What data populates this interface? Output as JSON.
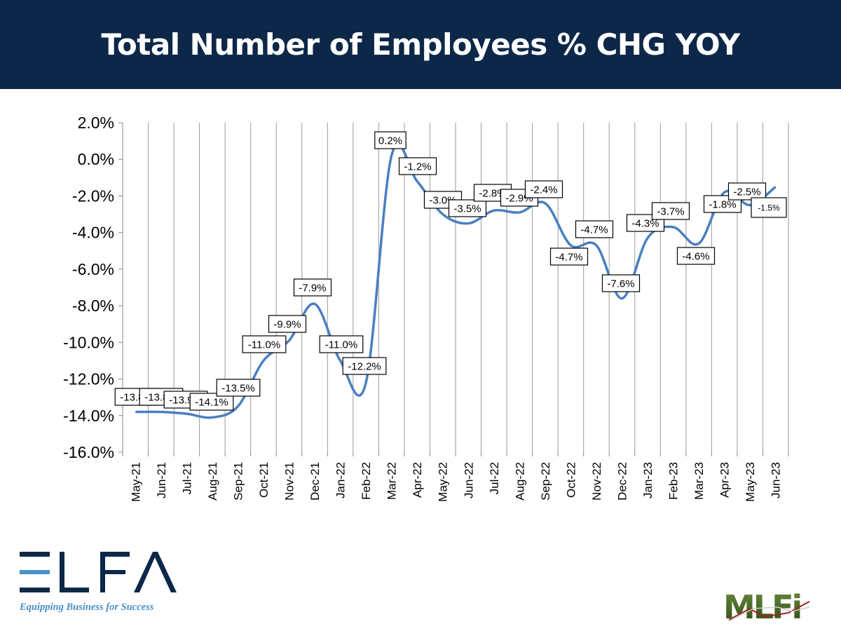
{
  "header": {
    "title": "Total Number of Employees % CHG YOY"
  },
  "chart_data": {
    "type": "line",
    "title": "Total Number of Employees % CHG YOY",
    "xlabel": "",
    "ylabel": "",
    "ylim": [
      -16.0,
      2.0
    ],
    "yticks": [
      "2.0%",
      "0.0%",
      "-2.0%",
      "-4.0%",
      "-6.0%",
      "-8.0%",
      "-10.0%",
      "-12.0%",
      "-14.0%",
      "-16.0%"
    ],
    "ytick_values": [
      2,
      0,
      -2,
      -4,
      -6,
      -8,
      -10,
      -12,
      -14,
      -16
    ],
    "grid": "vertical",
    "smooth": true,
    "line_color": "#4a7fc1",
    "categories": [
      "May-21",
      "Jun-21",
      "Jul-21",
      "Aug-21",
      "Sep-21",
      "Oct-21",
      "Nov-21",
      "Dec-21",
      "Jan-22",
      "Feb-22",
      "Mar-22",
      "Apr-22",
      "May-22",
      "Jun-22",
      "Jul-22",
      "Aug-22",
      "Sep-22",
      "Oct-22",
      "Nov-22",
      "Dec-22",
      "Jan-23",
      "Feb-23",
      "Mar-23",
      "Apr-23",
      "May-23",
      "Jun-23"
    ],
    "values": [
      -13.8,
      -13.8,
      -13.9,
      -14.1,
      -13.5,
      -11.0,
      -9.9,
      -7.9,
      -11.0,
      -12.2,
      0.2,
      -1.2,
      -3.0,
      -3.5,
      -2.8,
      -2.9,
      -2.4,
      -4.7,
      -4.7,
      -7.6,
      -4.3,
      -3.7,
      -4.6,
      -1.8,
      -2.5,
      -1.5
    ],
    "data_labels": [
      "-13.8%",
      "-13.8%",
      "-13.9%",
      "-14.1%",
      "-13.5%",
      "-11.0%",
      "-9.9%",
      "-7.9%",
      "-11.0%",
      "-12.2%",
      "0.2%",
      "-1.2%",
      "-3.0%",
      "-3.5%",
      "-2.8%",
      "-2.9%",
      "-2.4%",
      "-4.7%",
      "-4.7%",
      "-7.6%",
      "-4.3%",
      "-3.7%",
      "-4.6%",
      "-1.8%",
      "-2.5%",
      "-1.5%"
    ]
  },
  "logos": {
    "elfa": "ELFA",
    "elfa_tagline": "Equipping Business for Success",
    "mlfi": "MLFI"
  }
}
